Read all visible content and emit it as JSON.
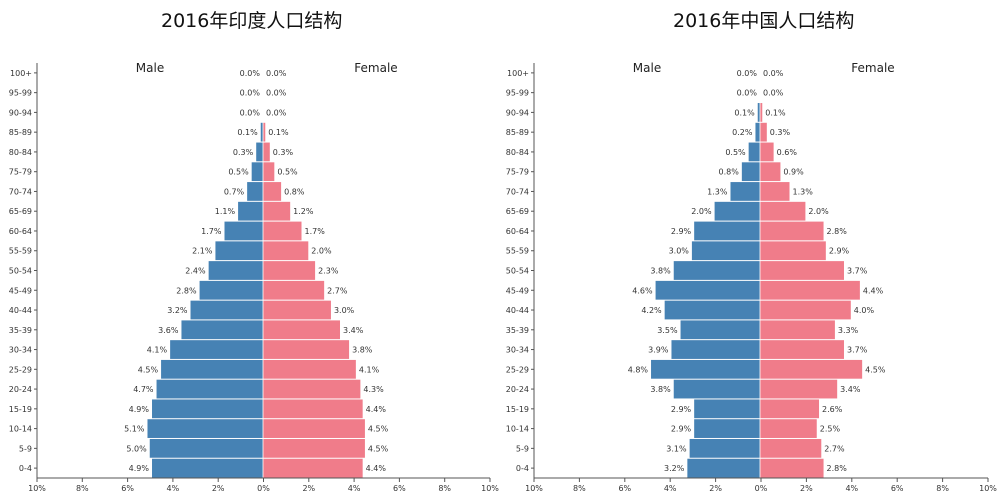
{
  "colors": {
    "male": "#4682b4",
    "female": "#f07c8a"
  },
  "chart_data": [
    {
      "type": "bar",
      "title": "2016年印度人口结构",
      "male_label": "Male",
      "female_label": "Female",
      "categories": [
        "0-4",
        "5-9",
        "10-14",
        "15-19",
        "20-24",
        "25-29",
        "30-34",
        "35-39",
        "40-44",
        "45-49",
        "50-54",
        "55-59",
        "60-64",
        "65-69",
        "70-74",
        "75-79",
        "80-84",
        "85-89",
        "90-94",
        "95-99",
        "100+"
      ],
      "series": [
        {
          "name": "Male",
          "values": [
            4.9,
            5.0,
            5.1,
            4.9,
            4.7,
            4.5,
            4.1,
            3.6,
            3.2,
            2.8,
            2.4,
            2.1,
            1.7,
            1.1,
            0.7,
            0.5,
            0.3,
            0.1,
            0.0,
            0.0,
            0.0
          ]
        },
        {
          "name": "Female",
          "values": [
            4.4,
            4.5,
            4.5,
            4.4,
            4.3,
            4.1,
            3.8,
            3.4,
            3.0,
            2.7,
            2.3,
            2.0,
            1.7,
            1.2,
            0.8,
            0.5,
            0.3,
            0.1,
            0.0,
            0.0,
            0.0
          ]
        }
      ],
      "xlim": [
        -10,
        10
      ],
      "xticks": [
        "10%",
        "8%",
        "6%",
        "4%",
        "2%",
        "0%",
        "2%",
        "4%",
        "6%",
        "8%",
        "10%"
      ]
    },
    {
      "type": "bar",
      "title": "2016年中国人口结构",
      "male_label": "Male",
      "female_label": "Female",
      "categories": [
        "0-4",
        "5-9",
        "10-14",
        "15-19",
        "20-24",
        "25-29",
        "30-34",
        "35-39",
        "40-44",
        "45-49",
        "50-54",
        "55-59",
        "60-64",
        "65-69",
        "70-74",
        "75-79",
        "80-84",
        "85-89",
        "90-94",
        "95-99",
        "100+"
      ],
      "series": [
        {
          "name": "Male",
          "values": [
            3.2,
            3.1,
            2.9,
            2.9,
            3.8,
            4.8,
            3.9,
            3.5,
            4.2,
            4.6,
            3.8,
            3.0,
            2.9,
            2.0,
            1.3,
            0.8,
            0.5,
            0.2,
            0.1,
            0.0,
            0.0
          ]
        },
        {
          "name": "Female",
          "values": [
            2.8,
            2.7,
            2.5,
            2.6,
            3.4,
            4.5,
            3.7,
            3.3,
            4.0,
            4.4,
            3.7,
            2.9,
            2.8,
            2.0,
            1.3,
            0.9,
            0.6,
            0.3,
            0.1,
            0.0,
            0.0
          ]
        }
      ],
      "xlim": [
        -10,
        10
      ],
      "xticks": [
        "10%",
        "8%",
        "6%",
        "4%",
        "2%",
        "0%",
        "2%",
        "4%",
        "6%",
        "8%",
        "10%"
      ]
    }
  ]
}
